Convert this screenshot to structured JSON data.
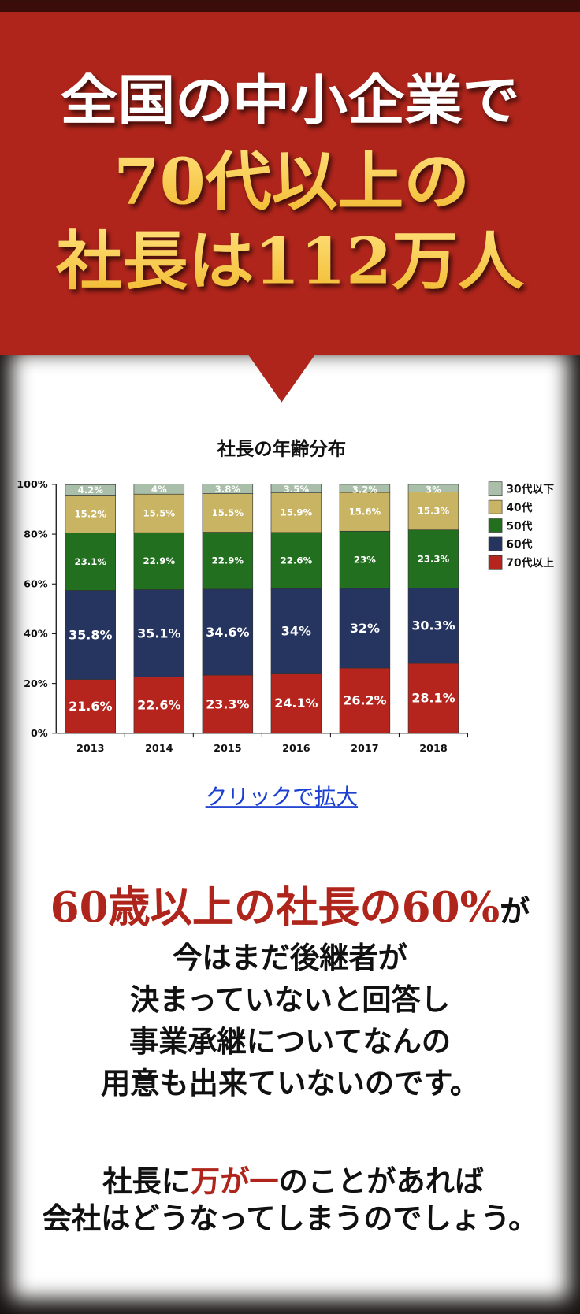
{
  "header": {
    "line1": "全国の中小企業で",
    "line2": "70代以上の",
    "line3": "社長は112万人"
  },
  "chart_data": {
    "type": "stacked_bar",
    "title": "社長の年齢分布",
    "categories": [
      "2013",
      "2014",
      "2015",
      "2016",
      "2017",
      "2018"
    ],
    "series": [
      {
        "name": "70代以上",
        "color": "#b5251d",
        "values": [
          21.6,
          22.6,
          23.3,
          24.1,
          26.2,
          28.1
        ],
        "value_labels": [
          "21.6%",
          "22.6%",
          "23.3%",
          "24.1%",
          "26.2%",
          "28.1%"
        ]
      },
      {
        "name": "60代",
        "color": "#253560",
        "values": [
          35.8,
          35.1,
          34.6,
          34,
          32,
          30.3
        ],
        "value_labels": [
          "35.8%",
          "35.1%",
          "34.6%",
          "34%",
          "32%",
          "30.3%"
        ]
      },
      {
        "name": "50代",
        "color": "#22701f",
        "values": [
          23.1,
          22.9,
          22.9,
          22.6,
          23,
          23.3
        ],
        "value_labels": [
          "23.1%",
          "22.9%",
          "22.9%",
          "22.6%",
          "23%",
          "23.3%"
        ]
      },
      {
        "name": "40代",
        "color": "#c8b462",
        "values": [
          15.2,
          15.5,
          15.5,
          15.9,
          15.6,
          15.3
        ],
        "value_labels": [
          "15.2%",
          "15.5%",
          "15.5%",
          "15.9%",
          "15.6%",
          "15.3%"
        ]
      },
      {
        "name": "30代以下",
        "color": "#a9bfa9",
        "values": [
          4.2,
          4,
          3.8,
          3.5,
          3.2,
          3
        ],
        "value_labels": [
          "4.2%",
          "4%",
          "3.8%",
          "3.5%",
          "3.2%",
          "3%"
        ]
      }
    ],
    "ylim": [
      0,
      100
    ],
    "yticks": [
      {
        "value": 0,
        "label": "0%"
      },
      {
        "value": 20,
        "label": "20%"
      },
      {
        "value": 40,
        "label": "40%"
      },
      {
        "value": 60,
        "label": "60%"
      },
      {
        "value": 80,
        "label": "80%"
      },
      {
        "value": 100,
        "label": "100%"
      }
    ]
  },
  "link": "クリックで拡大",
  "headline": {
    "emphasis": "60歳以上の社長の60%",
    "tail": "が"
  },
  "paragraph": [
    "今はまだ後継者が",
    "決まっていないと回答し",
    "事業承継についてなんの",
    "用意も出来ていないのです。"
  ],
  "closing": {
    "line1_start": "社長に",
    "line1_emphasis": "万が一",
    "line1_end": "のことがあれば",
    "line2": "会社はどうなってしまうのでしょう。"
  }
}
